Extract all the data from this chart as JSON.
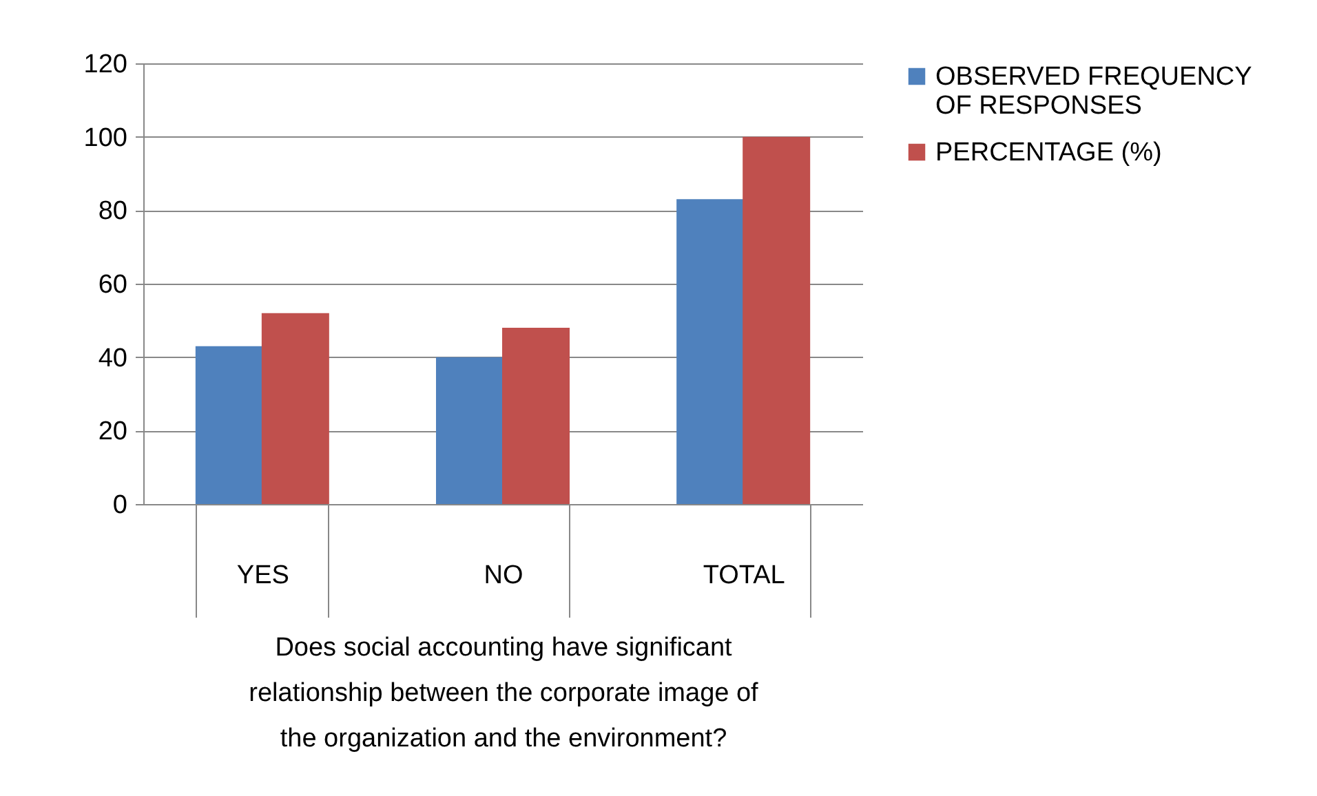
{
  "chart_data": {
    "type": "bar",
    "xlabel": "Does social accounting have significant relationship between the corporate image of the organization and the environment?",
    "categories": [
      "YES",
      "NO",
      "TOTAL"
    ],
    "series": [
      {
        "name": "OBSERVED FREQUENCY OF RESPONSES",
        "color": "#4f81bd",
        "values": [
          43,
          40,
          83
        ]
      },
      {
        "name": "PERCENTAGE (%)",
        "color": "#c0504d",
        "values": [
          52,
          48,
          100
        ]
      }
    ],
    "ylim": [
      0,
      120
    ],
    "yticks": [
      0,
      20,
      40,
      60,
      80,
      100,
      120
    ],
    "grid": "y",
    "legend": "right"
  }
}
